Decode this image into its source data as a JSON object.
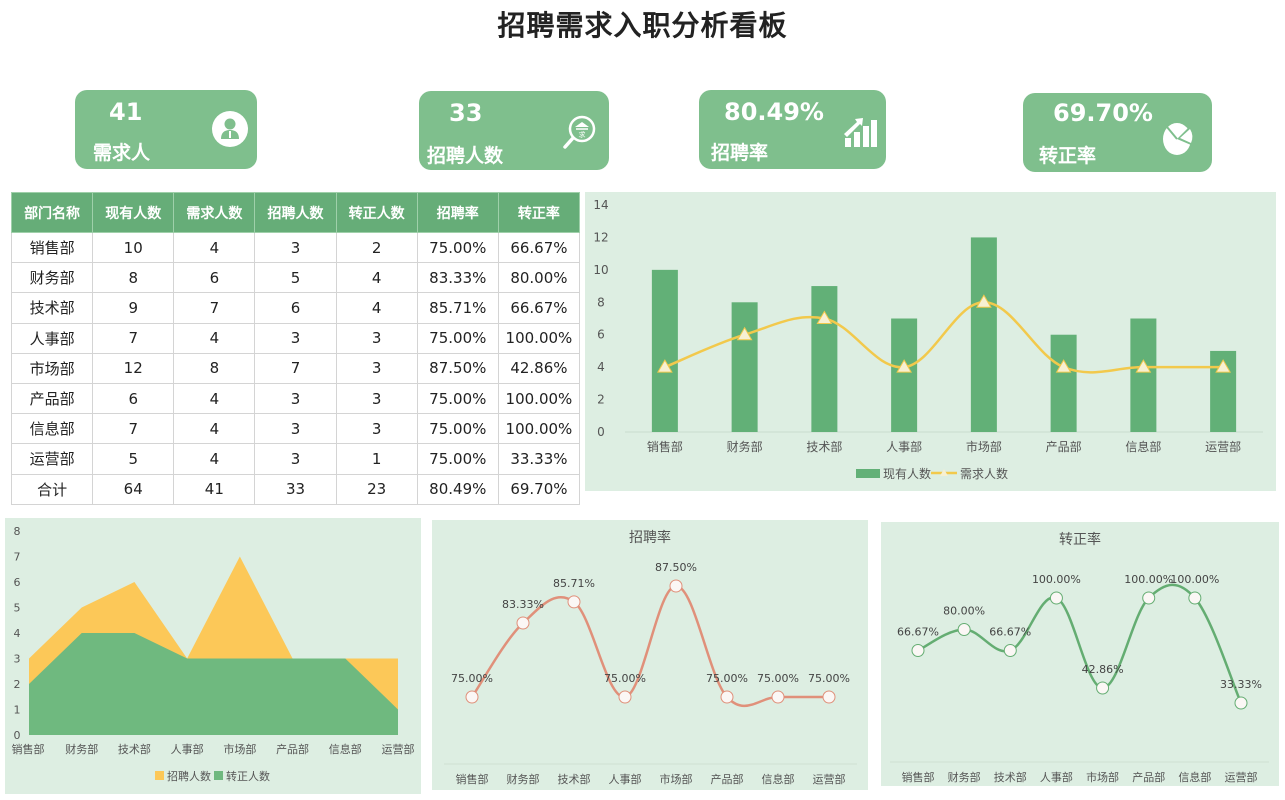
{
  "header": {
    "title": "招聘需求入职分析看板"
  },
  "kpis": [
    {
      "value": "41",
      "label": "需求人",
      "icon": "user-icon"
    },
    {
      "value": "33",
      "label": "招聘人数",
      "icon": "recruit-search-icon"
    },
    {
      "value": "80.49%",
      "label": "招聘率",
      "icon": "bar-growth-icon"
    },
    {
      "value": "69.70%",
      "label": "转正率",
      "icon": "pie-chart-icon"
    }
  ],
  "table": {
    "headers": [
      "部门名称",
      "现有人数",
      "需求人数",
      "招聘人数",
      "转正人数",
      "招聘率",
      "转正率"
    ],
    "rows": [
      [
        "销售部",
        "10",
        "4",
        "3",
        "2",
        "75.00%",
        "66.67%"
      ],
      [
        "财务部",
        "8",
        "6",
        "5",
        "4",
        "83.33%",
        "80.00%"
      ],
      [
        "技术部",
        "9",
        "7",
        "6",
        "4",
        "85.71%",
        "66.67%"
      ],
      [
        "人事部",
        "7",
        "4",
        "3",
        "3",
        "75.00%",
        "100.00%"
      ],
      [
        "市场部",
        "12",
        "8",
        "7",
        "3",
        "87.50%",
        "42.86%"
      ],
      [
        "产品部",
        "6",
        "4",
        "3",
        "3",
        "75.00%",
        "100.00%"
      ],
      [
        "信息部",
        "7",
        "4",
        "3",
        "3",
        "75.00%",
        "100.00%"
      ],
      [
        "运营部",
        "5",
        "4",
        "3",
        "1",
        "75.00%",
        "33.33%"
      ],
      [
        "合计",
        "64",
        "41",
        "33",
        "23",
        "80.49%",
        "69.70%"
      ]
    ]
  },
  "colors": {
    "kpi_bg": "#7fbf8d",
    "header_bg": "#66ad78",
    "panel_bg": "#ddeee2",
    "bar_green": "#62b077",
    "line_yellow": "#f2c94c",
    "area_yellow": "#fcc858",
    "area_green": "#6fb97f",
    "line_salmon": "#e0907a",
    "line_green": "#64ad72"
  },
  "chart_data": [
    {
      "type": "bar",
      "title": "",
      "categories": [
        "销售部",
        "财务部",
        "技术部",
        "人事部",
        "市场部",
        "产品部",
        "信息部",
        "运营部"
      ],
      "series": [
        {
          "name": "现有人数",
          "type": "bar",
          "values": [
            10,
            8,
            9,
            7,
            12,
            6,
            7,
            5
          ]
        },
        {
          "name": "需求人数",
          "type": "line",
          "values": [
            4,
            6,
            7,
            4,
            8,
            4,
            4,
            4
          ]
        }
      ],
      "yticks": [
        0,
        2,
        4,
        6,
        8,
        10,
        12,
        14
      ],
      "ylim": [
        0,
        14
      ],
      "legend": [
        "现有人数",
        "需求人数"
      ],
      "legend_position": "bottom"
    },
    {
      "type": "area",
      "title": "",
      "categories": [
        "销售部",
        "财务部",
        "技术部",
        "人事部",
        "市场部",
        "产品部",
        "信息部",
        "运营部"
      ],
      "series": [
        {
          "name": "招聘人数",
          "values": [
            3,
            5,
            6,
            3,
            7,
            3,
            3,
            3
          ]
        },
        {
          "name": "转正人数",
          "values": [
            2,
            4,
            4,
            3,
            3,
            3,
            3,
            1
          ]
        }
      ],
      "yticks": [
        0,
        1,
        2,
        3,
        4,
        5,
        6,
        7,
        8
      ],
      "ylim": [
        0,
        8
      ],
      "legend": [
        "招聘人数",
        "转正人数"
      ],
      "legend_position": "bottom"
    },
    {
      "type": "line",
      "title": "招聘率",
      "categories": [
        "销售部",
        "财务部",
        "技术部",
        "人事部",
        "市场部",
        "产品部",
        "信息部",
        "运营部"
      ],
      "values": [
        75.0,
        83.33,
        85.71,
        75.0,
        87.5,
        75.0,
        75.0,
        75.0
      ],
      "labels": [
        "75.00%",
        "83.33%",
        "85.71%",
        "75.00%",
        "87.50%",
        "75.00%",
        "75.00%",
        "75.00%"
      ]
    },
    {
      "type": "line",
      "title": "转正率",
      "categories": [
        "销售部",
        "财务部",
        "技术部",
        "人事部",
        "市场部",
        "产品部",
        "信息部",
        "运营部"
      ],
      "values": [
        66.67,
        80.0,
        66.67,
        100.0,
        42.86,
        100.0,
        100.0,
        33.33
      ],
      "labels": [
        "66.67%",
        "80.00%",
        "66.67%",
        "100.00%",
        "42.86%",
        "100.00%",
        "100.00%",
        "33.33%"
      ]
    }
  ]
}
